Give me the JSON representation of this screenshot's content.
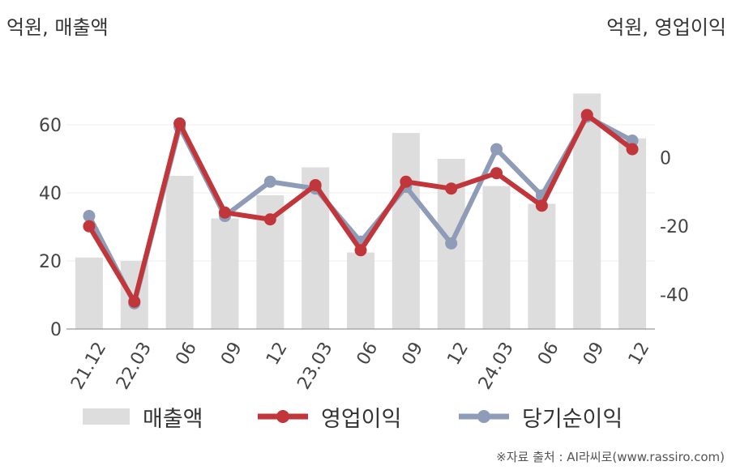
{
  "units": {
    "left": "억원, 매출액",
    "right": "억원, 영업이익"
  },
  "source": "※자료 출처 : AI라씨로(www.rassiro.com)",
  "legend": [
    {
      "name": "매출액",
      "type": "bar",
      "color": "#dddddd"
    },
    {
      "name": "영업이익",
      "type": "line",
      "color": "#c0363a"
    },
    {
      "name": "당기순이익",
      "type": "line",
      "color": "#8f9cb8"
    }
  ],
  "chart_data": {
    "type": "bar+line",
    "categories": [
      "21.12",
      "22.03",
      "06",
      "09",
      "12",
      "23.03",
      "06",
      "09",
      "12",
      "24.03",
      "06",
      "09",
      "12"
    ],
    "left_axis": {
      "ylim": [
        0,
        80
      ],
      "ticks": [
        0,
        20,
        40,
        60
      ]
    },
    "right_axis": {
      "ylim": [
        -50,
        29.5
      ],
      "ticks": [
        0,
        -20,
        -40
      ]
    },
    "grid": true,
    "legend_position": "bottom",
    "series": [
      {
        "name": "매출액",
        "type": "bar",
        "axis": "left",
        "color": "#dddddd",
        "values": [
          21,
          20,
          45,
          32.5,
          39.3,
          47.5,
          22.5,
          57.6,
          50,
          42,
          36.8,
          69.2,
          56
        ]
      },
      {
        "name": "당기순이익",
        "type": "line",
        "axis": "right",
        "color": "#8f9cb8",
        "values": [
          -17,
          -42.5,
          9,
          -17,
          -7,
          -9,
          -24.5,
          -8.5,
          -25,
          2.5,
          -11,
          12,
          5
        ]
      },
      {
        "name": "영업이익",
        "type": "line",
        "axis": "right",
        "color": "#c0363a",
        "values": [
          -20,
          -42,
          10,
          -16,
          -18,
          -8,
          -27,
          -7,
          -9,
          -4.5,
          -14,
          12.5,
          2.5
        ]
      }
    ]
  }
}
